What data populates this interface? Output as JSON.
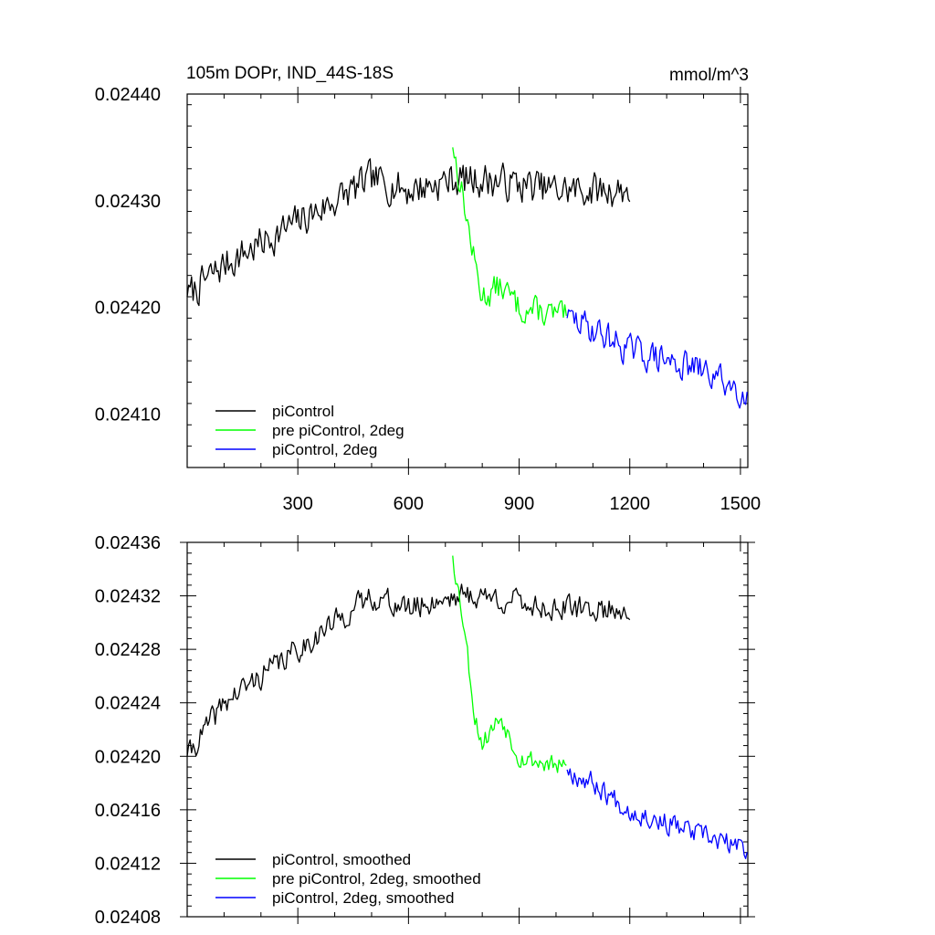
{
  "chart_data": [
    {
      "type": "line",
      "title": "105m DOPr, IND_44S-18S",
      "units": "mmol/m^3",
      "xlim": [
        0,
        1520
      ],
      "ylim": [
        0.02405,
        0.0244
      ],
      "xticks": [
        300,
        600,
        900,
        1200,
        1500
      ],
      "xtick_labels": [
        "300",
        "600",
        "900",
        "1200",
        "1500"
      ],
      "yticks": [
        0.0241,
        0.0242,
        0.0243,
        0.0244
      ],
      "ytick_labels": [
        "0.02410",
        "0.02420",
        "0.02430",
        "0.02440"
      ],
      "legend": "bottom-left",
      "series": [
        {
          "name": "piControl",
          "color": "#000000",
          "x_start": 0,
          "x_end": 1200,
          "anchors": [
            [
              0,
              0.02421
            ],
            [
              100,
              0.02424
            ],
            [
              200,
              0.02426
            ],
            [
              300,
              0.02428
            ],
            [
              400,
              0.0243
            ],
            [
              500,
              0.02432
            ],
            [
              600,
              0.02431
            ],
            [
              720,
              0.02432
            ],
            [
              800,
              0.02432
            ],
            [
              1000,
              0.02431
            ],
            [
              1200,
              0.02431
            ]
          ],
          "noise": 1.5e-05,
          "seed": 7
        },
        {
          "name": "pre piControl, 2deg",
          "color": "#00ff00",
          "x_start": 720,
          "x_end": 1030,
          "anchors": [
            [
              720,
              0.02435
            ],
            [
              750,
              0.0243
            ],
            [
              780,
              0.02424
            ],
            [
              800,
              0.02421
            ],
            [
              850,
              0.02422
            ],
            [
              900,
              0.0242
            ],
            [
              1030,
              0.02419
            ]
          ],
          "noise": 1.2e-05,
          "seed": 13
        },
        {
          "name": "piControl, 2deg",
          "color": "#0000ff",
          "x_start": 1030,
          "x_end": 1520,
          "anchors": [
            [
              1030,
              0.02419
            ],
            [
              1100,
              0.02418
            ],
            [
              1200,
              0.02416
            ],
            [
              1300,
              0.02415
            ],
            [
              1400,
              0.02414
            ],
            [
              1520,
              0.02412
            ]
          ],
          "noise": 1.3e-05,
          "seed": 29
        }
      ]
    },
    {
      "type": "line",
      "title": "",
      "xlim": [
        0,
        1520
      ],
      "ylim": [
        0.02408,
        0.02436
      ],
      "xticks": [
        300,
        600,
        900,
        1200,
        1500
      ],
      "yticks": [
        0.02408,
        0.02412,
        0.02416,
        0.0242,
        0.02424,
        0.02428,
        0.02432,
        0.02436
      ],
      "ytick_labels": [
        "0.02408",
        "0.02412",
        "0.02416",
        "0.02420",
        "0.02424",
        "0.02428",
        "0.02432",
        "0.02436"
      ],
      "legend": "bottom-left",
      "series": [
        {
          "name": "piControl, smoothed",
          "color": "#000000",
          "x_start": 0,
          "x_end": 1200,
          "anchors": [
            [
              0,
              0.0242
            ],
            [
              100,
              0.02424
            ],
            [
              200,
              0.02426
            ],
            [
              300,
              0.02428
            ],
            [
              400,
              0.0243
            ],
            [
              500,
              0.02432
            ],
            [
              600,
              0.02431
            ],
            [
              720,
              0.02432
            ],
            [
              800,
              0.02432
            ],
            [
              1000,
              0.02431
            ],
            [
              1200,
              0.02431
            ]
          ],
          "noise": 8.5e-06,
          "seed": 41
        },
        {
          "name": "pre piControl, 2deg, smoothed",
          "color": "#00ff00",
          "x_start": 720,
          "x_end": 1030,
          "anchors": [
            [
              720,
              0.02435
            ],
            [
              750,
              0.0243
            ],
            [
              780,
              0.02423
            ],
            [
              800,
              0.02421
            ],
            [
              850,
              0.02423
            ],
            [
              900,
              0.0242
            ],
            [
              1030,
              0.02419
            ]
          ],
          "noise": 7e-06,
          "seed": 53
        },
        {
          "name": "piControl, 2deg, smoothed",
          "color": "#0000ff",
          "x_start": 1030,
          "x_end": 1520,
          "anchors": [
            [
              1030,
              0.02419
            ],
            [
              1100,
              0.02418
            ],
            [
              1200,
              0.02416
            ],
            [
              1300,
              0.02415
            ],
            [
              1400,
              0.02414
            ],
            [
              1520,
              0.02413
            ]
          ],
          "noise": 7.5e-06,
          "seed": 67
        }
      ]
    }
  ]
}
